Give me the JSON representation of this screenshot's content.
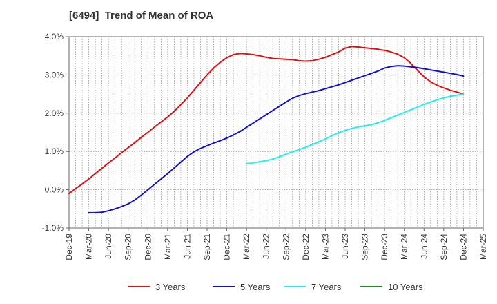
{
  "chart_data": {
    "type": "line",
    "title": "[6494]  Trend of Mean of ROA",
    "xlabel": "",
    "ylabel": "",
    "x_ticks": [
      "Dec-19",
      "Mar-20",
      "Jun-20",
      "Sep-20",
      "Dec-20",
      "Mar-21",
      "Jun-21",
      "Sep-21",
      "Dec-21",
      "Mar-22",
      "Jun-22",
      "Sep-22",
      "Dec-22",
      "Mar-23",
      "Jun-23",
      "Sep-23",
      "Dec-23",
      "Mar-24",
      "Jun-24",
      "Sep-24",
      "Dec-24",
      "Mar-25"
    ],
    "y_ticks": [
      "-1.0%",
      "0.0%",
      "1.0%",
      "2.0%",
      "3.0%",
      "4.0%"
    ],
    "ylim": [
      -1.0,
      4.0
    ],
    "y_unit": "%",
    "grid": {
      "vertical": true,
      "horizontal": true,
      "style": "dotted"
    },
    "legend_position": "bottom",
    "series": [
      {
        "name": "3 Years",
        "color": "#dd1111",
        "points": [
          [
            "Dec-19",
            -0.1
          ],
          [
            "Jan-20",
            0.03
          ],
          [
            "Feb-20",
            0.15
          ],
          [
            "Mar-20",
            0.28
          ],
          [
            "Apr-20",
            0.42
          ],
          [
            "May-20",
            0.56
          ],
          [
            "Jun-20",
            0.7
          ],
          [
            "Jul-20",
            0.83
          ],
          [
            "Aug-20",
            0.97
          ],
          [
            "Sep-20",
            1.1
          ],
          [
            "Oct-20",
            1.23
          ],
          [
            "Nov-20",
            1.37
          ],
          [
            "Dec-20",
            1.5
          ],
          [
            "Jan-21",
            1.64
          ],
          [
            "Feb-21",
            1.77
          ],
          [
            "Mar-21",
            1.9
          ],
          [
            "Apr-21",
            2.05
          ],
          [
            "May-21",
            2.22
          ],
          [
            "Jun-21",
            2.4
          ],
          [
            "Jul-21",
            2.6
          ],
          [
            "Aug-21",
            2.8
          ],
          [
            "Sep-21",
            3.0
          ],
          [
            "Oct-21",
            3.18
          ],
          [
            "Nov-21",
            3.33
          ],
          [
            "Dec-21",
            3.45
          ],
          [
            "Jan-22",
            3.53
          ],
          [
            "Feb-22",
            3.56
          ],
          [
            "Mar-22",
            3.55
          ],
          [
            "Apr-22",
            3.53
          ],
          [
            "May-22",
            3.5
          ],
          [
            "Jun-22",
            3.46
          ],
          [
            "Jul-22",
            3.43
          ],
          [
            "Aug-22",
            3.42
          ],
          [
            "Sep-22",
            3.41
          ],
          [
            "Oct-22",
            3.4
          ],
          [
            "Nov-22",
            3.37
          ],
          [
            "Dec-22",
            3.36
          ],
          [
            "Jan-23",
            3.37
          ],
          [
            "Feb-23",
            3.41
          ],
          [
            "Mar-23",
            3.46
          ],
          [
            "Apr-23",
            3.53
          ],
          [
            "May-23",
            3.6
          ],
          [
            "Jun-23",
            3.7
          ],
          [
            "Jul-23",
            3.74
          ],
          [
            "Aug-23",
            3.73
          ],
          [
            "Sep-23",
            3.71
          ],
          [
            "Oct-23",
            3.69
          ],
          [
            "Nov-23",
            3.67
          ],
          [
            "Dec-23",
            3.64
          ],
          [
            "Jan-24",
            3.6
          ],
          [
            "Feb-24",
            3.54
          ],
          [
            "Mar-24",
            3.45
          ],
          [
            "Apr-24",
            3.3
          ],
          [
            "May-24",
            3.12
          ],
          [
            "Jun-24",
            2.95
          ],
          [
            "Jul-24",
            2.82
          ],
          [
            "Aug-24",
            2.73
          ],
          [
            "Sep-24",
            2.66
          ],
          [
            "Oct-24",
            2.6
          ],
          [
            "Nov-24",
            2.55
          ],
          [
            "Dec-24",
            2.5
          ]
        ]
      },
      {
        "name": "5 Years",
        "color": "#1111cc",
        "points": [
          [
            "Mar-20",
            -0.6
          ],
          [
            "Apr-20",
            -0.6
          ],
          [
            "May-20",
            -0.59
          ],
          [
            "Jun-20",
            -0.55
          ],
          [
            "Jul-20",
            -0.5
          ],
          [
            "Aug-20",
            -0.44
          ],
          [
            "Sep-20",
            -0.37
          ],
          [
            "Oct-20",
            -0.27
          ],
          [
            "Nov-20",
            -0.14
          ],
          [
            "Dec-20",
            0.0
          ],
          [
            "Jan-21",
            0.14
          ],
          [
            "Feb-21",
            0.28
          ],
          [
            "Mar-21",
            0.42
          ],
          [
            "Apr-21",
            0.57
          ],
          [
            "May-21",
            0.72
          ],
          [
            "Jun-21",
            0.87
          ],
          [
            "Jul-21",
            0.99
          ],
          [
            "Aug-21",
            1.08
          ],
          [
            "Sep-21",
            1.15
          ],
          [
            "Oct-21",
            1.22
          ],
          [
            "Nov-21",
            1.28
          ],
          [
            "Dec-21",
            1.35
          ],
          [
            "Jan-22",
            1.43
          ],
          [
            "Feb-22",
            1.52
          ],
          [
            "Mar-22",
            1.63
          ],
          [
            "Apr-22",
            1.74
          ],
          [
            "May-22",
            1.85
          ],
          [
            "Jun-22",
            1.96
          ],
          [
            "Jul-22",
            2.07
          ],
          [
            "Aug-22",
            2.18
          ],
          [
            "Sep-22",
            2.29
          ],
          [
            "Oct-22",
            2.39
          ],
          [
            "Nov-22",
            2.46
          ],
          [
            "Dec-22",
            2.51
          ],
          [
            "Jan-23",
            2.55
          ],
          [
            "Feb-23",
            2.59
          ],
          [
            "Mar-23",
            2.64
          ],
          [
            "Apr-23",
            2.69
          ],
          [
            "May-23",
            2.74
          ],
          [
            "Jun-23",
            2.8
          ],
          [
            "Jul-23",
            2.86
          ],
          [
            "Aug-23",
            2.92
          ],
          [
            "Sep-23",
            2.98
          ],
          [
            "Oct-23",
            3.04
          ],
          [
            "Nov-23",
            3.1
          ],
          [
            "Dec-23",
            3.18
          ],
          [
            "Jan-24",
            3.22
          ],
          [
            "Feb-24",
            3.24
          ],
          [
            "Mar-24",
            3.23
          ],
          [
            "Apr-24",
            3.21
          ],
          [
            "May-24",
            3.19
          ],
          [
            "Jun-24",
            3.16
          ],
          [
            "Jul-24",
            3.13
          ],
          [
            "Aug-24",
            3.1
          ],
          [
            "Sep-24",
            3.07
          ],
          [
            "Oct-24",
            3.04
          ],
          [
            "Nov-24",
            3.01
          ],
          [
            "Dec-24",
            2.97
          ]
        ]
      },
      {
        "name": "7 Years",
        "color": "#22eeee",
        "points": [
          [
            "Mar-22",
            0.68
          ],
          [
            "Apr-22",
            0.7
          ],
          [
            "May-22",
            0.73
          ],
          [
            "Jun-22",
            0.76
          ],
          [
            "Jul-22",
            0.8
          ],
          [
            "Aug-22",
            0.86
          ],
          [
            "Sep-22",
            0.93
          ],
          [
            "Oct-22",
            0.99
          ],
          [
            "Nov-22",
            1.05
          ],
          [
            "Dec-22",
            1.11
          ],
          [
            "Jan-23",
            1.18
          ],
          [
            "Feb-23",
            1.25
          ],
          [
            "Mar-23",
            1.33
          ],
          [
            "Apr-23",
            1.41
          ],
          [
            "May-23",
            1.49
          ],
          [
            "Jun-23",
            1.55
          ],
          [
            "Jul-23",
            1.6
          ],
          [
            "Aug-23",
            1.64
          ],
          [
            "Sep-23",
            1.67
          ],
          [
            "Oct-23",
            1.7
          ],
          [
            "Nov-23",
            1.75
          ],
          [
            "Dec-23",
            1.81
          ],
          [
            "Jan-24",
            1.88
          ],
          [
            "Feb-24",
            1.95
          ],
          [
            "Mar-24",
            2.02
          ],
          [
            "Apr-24",
            2.09
          ],
          [
            "May-24",
            2.16
          ],
          [
            "Jun-24",
            2.23
          ],
          [
            "Jul-24",
            2.29
          ],
          [
            "Aug-24",
            2.35
          ],
          [
            "Sep-24",
            2.4
          ],
          [
            "Oct-24",
            2.44
          ],
          [
            "Nov-24",
            2.47
          ],
          [
            "Dec-24",
            2.5
          ]
        ]
      },
      {
        "name": "10 Years",
        "color": "#228822",
        "points": []
      }
    ]
  }
}
